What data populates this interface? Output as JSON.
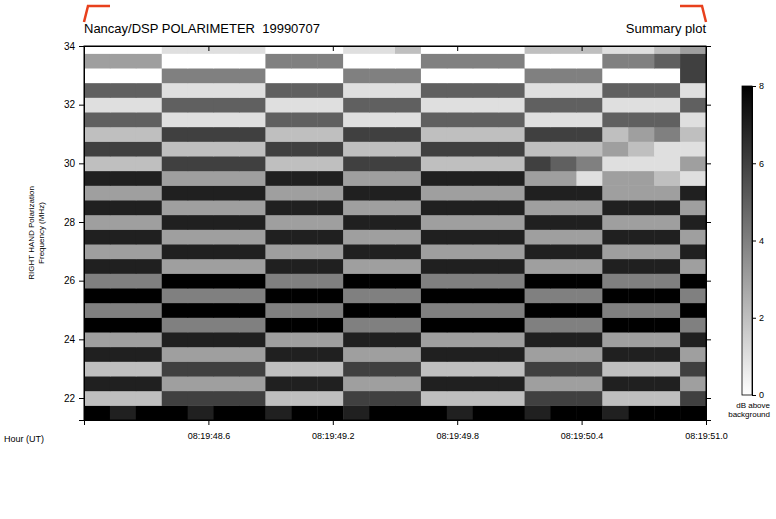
{
  "chart_data": {
    "type": "heatmap",
    "title": "Nancay/DSP POLARIMETER  19990707",
    "subtitle": "Summary plot",
    "xlabel": "Hour (UT)",
    "ylabel": [
      "RIGHT HAND Polarization",
      "Frequency (MHz)"
    ],
    "xlim": [
      48.0,
      51.0
    ],
    "xticks": [
      {
        "value": 48.6,
        "label": "08:19:48.6"
      },
      {
        "value": 49.2,
        "label": "08:19:49.2"
      },
      {
        "value": 49.8,
        "label": "08:19:49.8"
      },
      {
        "value": 50.4,
        "label": "08:19:50.4"
      },
      {
        "value": 51.0,
        "label": "08:19:51.0"
      }
    ],
    "ylim": [
      21.25,
      34
    ],
    "yticks": [
      22,
      24,
      26,
      28,
      30,
      32,
      34
    ],
    "x": [
      48.0625,
      48.1875,
      48.3125,
      48.4375,
      48.5625,
      48.6875,
      48.8125,
      48.9375,
      49.0625,
      49.1875,
      49.3125,
      49.4375,
      49.5625,
      49.6875,
      49.8125,
      49.9375,
      50.0625,
      50.1875,
      50.3125,
      50.4375,
      50.5625,
      50.6875,
      50.8125,
      50.9375
    ],
    "y": [
      21.5,
      22,
      22.5,
      23,
      23.5,
      24,
      24.5,
      25,
      25.5,
      26,
      26.5,
      27,
      27.5,
      28,
      28.5,
      29,
      29.5,
      30,
      30.5,
      31,
      31.5,
      32,
      32.5,
      33,
      33.5,
      34
    ],
    "z": [
      [
        8,
        7,
        8,
        8,
        7,
        8,
        8,
        7,
        8,
        8,
        7,
        8,
        8,
        8,
        7,
        8,
        8,
        7,
        8,
        8,
        7,
        8,
        8,
        8
      ],
      [
        2,
        2,
        2,
        6,
        6,
        6,
        6,
        2,
        2,
        2,
        6,
        6,
        6,
        2,
        2,
        2,
        2,
        6,
        6,
        6,
        2,
        2,
        2,
        6
      ],
      [
        7,
        7,
        7,
        3,
        3,
        3,
        3,
        7,
        7,
        7,
        3,
        3,
        3,
        7,
        7,
        7,
        7,
        3,
        3,
        3,
        7,
        7,
        7,
        3
      ],
      [
        2,
        2,
        2,
        6,
        6,
        6,
        6,
        2,
        2,
        2,
        6,
        6,
        6,
        2,
        2,
        2,
        2,
        6,
        6,
        6,
        2,
        2,
        2,
        6
      ],
      [
        7,
        7,
        7,
        3,
        3,
        3,
        3,
        7,
        7,
        7,
        3,
        3,
        3,
        7,
        7,
        7,
        7,
        3,
        3,
        3,
        7,
        7,
        7,
        3
      ],
      [
        3,
        3,
        3,
        7,
        7,
        7,
        7,
        3,
        3,
        3,
        7,
        7,
        7,
        3,
        3,
        3,
        3,
        7,
        7,
        7,
        3,
        3,
        3,
        7
      ],
      [
        8,
        8,
        8,
        4,
        4,
        4,
        4,
        8,
        8,
        8,
        4,
        4,
        4,
        8,
        8,
        8,
        8,
        4,
        4,
        4,
        8,
        8,
        8,
        4
      ],
      [
        4,
        4,
        4,
        8,
        8,
        8,
        8,
        4,
        4,
        4,
        8,
        8,
        8,
        4,
        4,
        4,
        4,
        8,
        8,
        8,
        4,
        4,
        4,
        8
      ],
      [
        8,
        8,
        8,
        4,
        4,
        4,
        4,
        8,
        8,
        8,
        4,
        4,
        4,
        8,
        8,
        8,
        8,
        4,
        4,
        4,
        8,
        8,
        8,
        4
      ],
      [
        4,
        4,
        4,
        8,
        8,
        8,
        8,
        4,
        4,
        4,
        8,
        8,
        8,
        4,
        4,
        4,
        4,
        8,
        8,
        8,
        4,
        4,
        4,
        8
      ],
      [
        7,
        7,
        7,
        3,
        3,
        3,
        3,
        7,
        7,
        7,
        3,
        3,
        3,
        7,
        7,
        7,
        7,
        3,
        3,
        3,
        7,
        7,
        7,
        3
      ],
      [
        3,
        3,
        3,
        7,
        7,
        7,
        7,
        3,
        3,
        3,
        7,
        7,
        7,
        3,
        3,
        3,
        3,
        7,
        7,
        7,
        3,
        3,
        3,
        7
      ],
      [
        7,
        7,
        7,
        3,
        3,
        3,
        3,
        7,
        7,
        7,
        3,
        3,
        3,
        7,
        7,
        7,
        7,
        3,
        3,
        3,
        7,
        7,
        7,
        3
      ],
      [
        3,
        3,
        3,
        7,
        7,
        7,
        7,
        3,
        3,
        3,
        7,
        7,
        7,
        3,
        3,
        3,
        3,
        7,
        7,
        7,
        3,
        3,
        3,
        7
      ],
      [
        7,
        7,
        7,
        3,
        3,
        3,
        3,
        7,
        7,
        7,
        3,
        3,
        3,
        7,
        7,
        7,
        7,
        3,
        3,
        3,
        7,
        7,
        7,
        3
      ],
      [
        3,
        3,
        3,
        7,
        7,
        7,
        7,
        3,
        3,
        3,
        7,
        7,
        7,
        3,
        3,
        3,
        3,
        7,
        7,
        7,
        3,
        3,
        3,
        7
      ],
      [
        7,
        7,
        7,
        3,
        3,
        3,
        3,
        7,
        7,
        7,
        3,
        3,
        3,
        7,
        7,
        7,
        7,
        3,
        3,
        1,
        3,
        3,
        2,
        1
      ],
      [
        2,
        2,
        2,
        6,
        6,
        6,
        6,
        2,
        2,
        2,
        6,
        6,
        6,
        2,
        2,
        2,
        2,
        6,
        5,
        4,
        1,
        1,
        1,
        3
      ],
      [
        6,
        6,
        6,
        2,
        2,
        2,
        2,
        6,
        6,
        6,
        2,
        2,
        2,
        6,
        6,
        6,
        6,
        2,
        2,
        2,
        3,
        2,
        1,
        1
      ],
      [
        2,
        2,
        2,
        6,
        6,
        6,
        6,
        2,
        2,
        2,
        6,
        6,
        6,
        2,
        2,
        2,
        2,
        6,
        6,
        6,
        2,
        3,
        4,
        2
      ],
      [
        5,
        5,
        5,
        1,
        1,
        1,
        1,
        5,
        5,
        5,
        1,
        1,
        1,
        5,
        5,
        5,
        5,
        1,
        1,
        1,
        5,
        5,
        5,
        1
      ],
      [
        1,
        1,
        1,
        5,
        5,
        5,
        5,
        1,
        1,
        1,
        5,
        5,
        5,
        1,
        1,
        1,
        1,
        5,
        5,
        5,
        1,
        1,
        1,
        5
      ],
      [
        5,
        5,
        5,
        1,
        1,
        1,
        1,
        5,
        5,
        5,
        1,
        1,
        1,
        5,
        5,
        5,
        5,
        1,
        1,
        1,
        5,
        5,
        5,
        1
      ],
      [
        0,
        0,
        0,
        4,
        4,
        4,
        4,
        0,
        0,
        0,
        4,
        4,
        4,
        0,
        0,
        0,
        0,
        4,
        4,
        4,
        0,
        0,
        0,
        6
      ],
      [
        3,
        3,
        3,
        0,
        0,
        0,
        0,
        4,
        4,
        4,
        0,
        0,
        0,
        4,
        4,
        4,
        4,
        0,
        0,
        0,
        4,
        4,
        5,
        6
      ],
      [
        0,
        0,
        0,
        1,
        1,
        1,
        1,
        0,
        0,
        0,
        1,
        1,
        2,
        0,
        0,
        0,
        0,
        2,
        2,
        2,
        1,
        1,
        2,
        3
      ]
    ],
    "colorbar": {
      "range": [
        0,
        8
      ],
      "ticks": [
        0,
        2,
        4,
        6,
        8
      ],
      "label": [
        "dB above",
        "background"
      ]
    }
  }
}
